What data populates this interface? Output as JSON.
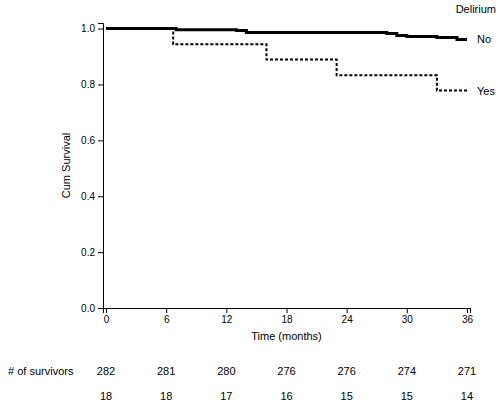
{
  "chart_data": {
    "type": "step",
    "xlabel": "Time (months)",
    "ylabel": "Cum Survival",
    "legend_title": "Delirium",
    "xlim": [
      -0.3,
      36.3
    ],
    "ylim": [
      0,
      1.02
    ],
    "xticks": [
      0,
      6,
      12,
      18,
      24,
      30,
      36
    ],
    "yticks": [
      {
        "value": 0,
        "label": "0.0"
      },
      0.2,
      0.4,
      0.6,
      0.8,
      {
        "value": 1,
        "label": "1.0"
      }
    ],
    "at_risk_label": "# of survivors",
    "series": [
      {
        "name": "No",
        "color": "#000000",
        "line_style": "solid",
        "x": [
          0,
          7,
          13,
          14,
          28,
          29,
          30,
          33,
          35,
          36
        ],
        "values": [
          1.0,
          0.996,
          0.993,
          0.986,
          0.982,
          0.975,
          0.972,
          0.968,
          0.961,
          0.961
        ],
        "at_risk": [
          282,
          281,
          280,
          276,
          276,
          274,
          271
        ]
      },
      {
        "name": "Yes",
        "color": "#000000",
        "line_style": "dashed",
        "x": [
          0,
          6.7,
          16,
          23,
          33,
          36
        ],
        "values": [
          1.0,
          0.944,
          0.889,
          0.833,
          0.778,
          0.778
        ],
        "at_risk": [
          18,
          18,
          17,
          16,
          15,
          15,
          14
        ]
      }
    ]
  }
}
